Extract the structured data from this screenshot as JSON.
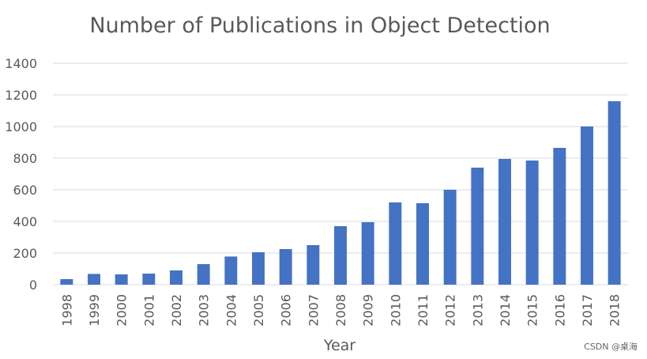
{
  "chart_data": {
    "type": "bar",
    "title": "Number of Publications in Object Detection",
    "xlabel": "Year",
    "ylabel": "",
    "categories": [
      "1998",
      "1999",
      "2000",
      "2001",
      "2002",
      "2003",
      "2004",
      "2005",
      "2006",
      "2007",
      "2008",
      "2009",
      "2010",
      "2011",
      "2012",
      "2013",
      "2014",
      "2015",
      "2016",
      "2017",
      "2018"
    ],
    "values": [
      35,
      68,
      65,
      70,
      90,
      130,
      178,
      205,
      225,
      250,
      370,
      395,
      520,
      515,
      600,
      740,
      795,
      785,
      865,
      1000,
      1160
    ],
    "ylim": [
      0,
      1400
    ],
    "yticks": [
      "0",
      "200",
      "400",
      "600",
      "800",
      "1000",
      "1200",
      "1400"
    ],
    "grid": true,
    "legend": "none",
    "bar_color": "#4472c4"
  },
  "watermark": "CSDN @桌海"
}
